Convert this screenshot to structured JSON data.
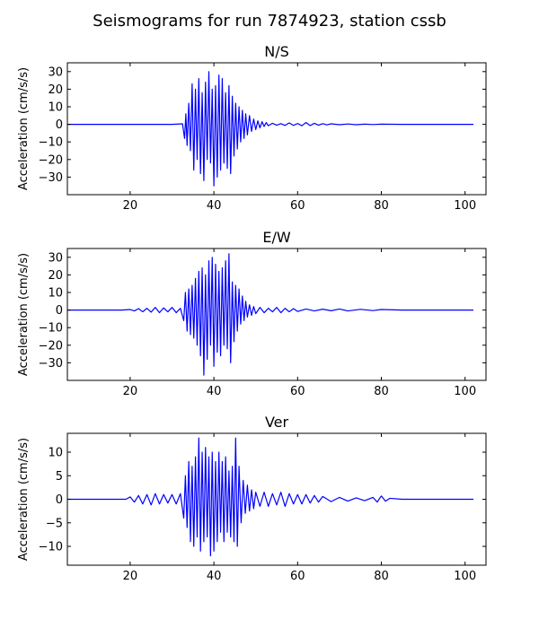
{
  "figure": {
    "title": "Seismograms for run 7874923, station cssb"
  },
  "colors": {
    "trace": "#0000ff",
    "axes": "#000000",
    "background": "#ffffff"
  },
  "chart_data": [
    {
      "type": "line",
      "title": "N/S",
      "xlabel": "",
      "ylabel": "Acceleration (cm/s/s)",
      "xlim": [
        5,
        105
      ],
      "ylim": [
        -40,
        35
      ],
      "xticks": [
        20,
        40,
        60,
        80,
        100
      ],
      "yticks": [
        -30,
        -20,
        -10,
        0,
        10,
        20,
        30
      ],
      "grid": false,
      "series": [
        {
          "x": [
            5,
            30,
            32.5,
            33,
            33.3,
            33.6,
            34,
            34.4,
            34.8,
            35.2,
            35.6,
            36,
            36.4,
            36.8,
            37.2,
            37.6,
            38,
            38.4,
            38.8,
            39.2,
            39.6,
            40,
            40.4,
            40.8,
            41.2,
            41.6,
            42,
            42.4,
            42.8,
            43.2,
            43.6,
            44,
            44.4,
            44.8,
            45.2,
            45.6,
            46,
            46.4,
            46.8,
            47.2,
            47.6,
            48,
            48.5,
            49,
            49.5,
            50,
            50.5,
            51,
            51.5,
            52,
            52.5,
            53,
            54,
            55,
            56,
            57,
            58,
            59,
            60,
            61,
            62,
            63,
            64,
            65,
            66,
            67,
            68,
            70,
            72,
            74,
            76,
            78,
            80,
            85,
            90,
            95,
            102
          ],
          "y": [
            0,
            0,
            0.3,
            -8,
            6,
            -12,
            12,
            -15,
            23,
            -26,
            20,
            -20,
            26,
            -28,
            18,
            -32,
            24,
            -20,
            30,
            -22,
            20,
            -35,
            22,
            -30,
            28,
            -26,
            26,
            -22,
            18,
            -25,
            22,
            -28,
            16,
            -18,
            12,
            -14,
            10,
            -10,
            8,
            -8,
            6,
            -6,
            5,
            -4,
            3,
            -3,
            2,
            -2,
            1.5,
            -1.2,
            1,
            -0.8,
            0.6,
            -0.5,
            0.4,
            -0.6,
            0.8,
            -0.6,
            0.5,
            -0.8,
            1,
            -0.7,
            0.6,
            -0.5,
            0.4,
            -0.3,
            0.3,
            -0.2,
            0.2,
            -0.2,
            0.1,
            -0.1,
            0.1,
            0,
            0,
            0,
            0
          ]
        }
      ]
    },
    {
      "type": "line",
      "title": "E/W",
      "xlabel": "",
      "ylabel": "Acceleration (cm/s/s)",
      "xlim": [
        5,
        105
      ],
      "ylim": [
        -40,
        35
      ],
      "xticks": [
        20,
        40,
        60,
        80,
        100
      ],
      "yticks": [
        -30,
        -20,
        -10,
        0,
        10,
        20,
        30
      ],
      "grid": false,
      "series": [
        {
          "x": [
            5,
            18,
            20,
            21,
            22,
            23,
            24,
            25,
            26,
            27,
            28,
            29,
            30,
            31,
            32,
            32.8,
            33.2,
            33.6,
            34,
            34.4,
            34.8,
            35.2,
            35.6,
            36,
            36.4,
            36.8,
            37.2,
            37.6,
            38,
            38.4,
            38.8,
            39.2,
            39.6,
            40,
            40.4,
            40.8,
            41.2,
            41.6,
            42,
            42.4,
            42.8,
            43.2,
            43.6,
            44,
            44.4,
            44.8,
            45.2,
            45.6,
            46,
            46.4,
            46.8,
            47.2,
            47.6,
            48,
            48.5,
            49,
            49.5,
            50,
            51,
            52,
            53,
            54,
            55,
            56,
            57,
            58,
            59,
            60,
            62,
            64,
            66,
            68,
            70,
            72,
            75,
            78,
            80,
            85,
            90,
            102
          ],
          "y": [
            0,
            0,
            0.3,
            -0.5,
            0.8,
            -1,
            1,
            -1.2,
            1.5,
            -1.5,
            1.2,
            -1,
            1.5,
            -1.5,
            1,
            -6,
            10,
            -12,
            12,
            -14,
            14,
            -16,
            18,
            -20,
            22,
            -26,
            24,
            -37,
            20,
            -28,
            28,
            -20,
            30,
            -32,
            26,
            -24,
            22,
            -26,
            24,
            -20,
            28,
            -22,
            32,
            -30,
            16,
            -18,
            14,
            -12,
            12,
            -8,
            8,
            -6,
            5,
            -4,
            3,
            -3,
            2,
            -2,
            1.5,
            -1.5,
            1,
            -1,
            1.5,
            -1.5,
            1,
            -1,
            0.8,
            -0.8,
            0.6,
            -0.5,
            0.5,
            -0.4,
            0.6,
            -0.5,
            0.4,
            -0.3,
            0.3,
            0,
            0,
            0
          ]
        }
      ]
    },
    {
      "type": "line",
      "title": "Ver",
      "xlabel": "",
      "ylabel": "Acceleration (cm/s/s)",
      "xlim": [
        5,
        105
      ],
      "ylim": [
        -14,
        14
      ],
      "xticks": [
        20,
        40,
        60,
        80,
        100
      ],
      "yticks": [
        -10,
        -5,
        0,
        5,
        10
      ],
      "grid": false,
      "series": [
        {
          "x": [
            5,
            19,
            20,
            21,
            22,
            23,
            24,
            25,
            26,
            27,
            28,
            29,
            30,
            31,
            32,
            32.8,
            33.2,
            33.6,
            34,
            34.4,
            34.8,
            35.2,
            35.6,
            36,
            36.4,
            36.8,
            37.2,
            37.6,
            38,
            38.4,
            38.8,
            39.2,
            39.6,
            40,
            40.4,
            40.8,
            41.2,
            41.6,
            42,
            42.4,
            42.8,
            43.2,
            43.6,
            44,
            44.4,
            44.8,
            45.2,
            45.6,
            46,
            46.5,
            47,
            47.5,
            48,
            48.5,
            49,
            49.5,
            50,
            51,
            52,
            53,
            54,
            55,
            56,
            57,
            58,
            59,
            60,
            61,
            62,
            63,
            64,
            65,
            66,
            68,
            70,
            72,
            74,
            76,
            78,
            79,
            80,
            81,
            82,
            85,
            90,
            102
          ],
          "y": [
            0,
            0,
            0.5,
            -0.6,
            0.8,
            -1,
            1,
            -1.2,
            1.2,
            -1,
            1,
            -0.8,
            1,
            -1,
            1.2,
            -4,
            5,
            -6,
            8,
            -9,
            7,
            -10,
            9,
            -8,
            13,
            -11,
            10,
            -9,
            11,
            -8,
            9,
            -12,
            10,
            -11,
            8,
            -9,
            10,
            -7,
            8,
            -9,
            9,
            -7,
            6,
            -8,
            7,
            -9,
            13,
            -10,
            7,
            -5,
            4,
            -3,
            3,
            -2.5,
            2,
            -2,
            1.5,
            -1.5,
            1.5,
            -1.5,
            1.2,
            -1.2,
            1.5,
            -1.5,
            1.2,
            -1,
            1,
            -1,
            1,
            -0.8,
            0.8,
            -0.6,
            0.6,
            -0.5,
            0.4,
            -0.4,
            0.3,
            -0.3,
            0.4,
            -0.6,
            0.7,
            -0.4,
            0.2,
            0,
            0,
            0
          ]
        }
      ]
    }
  ]
}
